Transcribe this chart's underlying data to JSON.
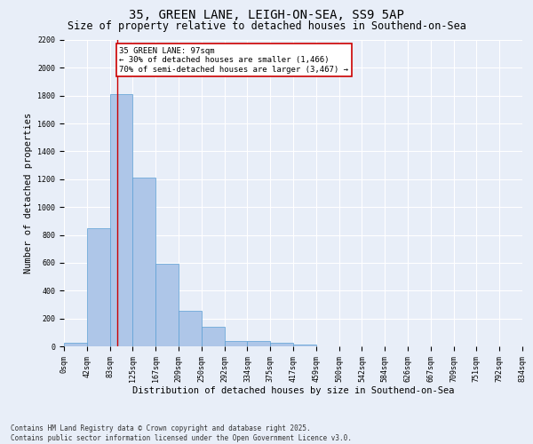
{
  "title": "35, GREEN LANE, LEIGH-ON-SEA, SS9 5AP",
  "subtitle": "Size of property relative to detached houses in Southend-on-Sea",
  "xlabel": "Distribution of detached houses by size in Southend-on-Sea",
  "ylabel": "Number of detached properties",
  "bin_labels": [
    "0sqm",
    "42sqm",
    "83sqm",
    "125sqm",
    "167sqm",
    "209sqm",
    "250sqm",
    "292sqm",
    "334sqm",
    "375sqm",
    "417sqm",
    "459sqm",
    "500sqm",
    "542sqm",
    "584sqm",
    "626sqm",
    "667sqm",
    "709sqm",
    "751sqm",
    "792sqm",
    "834sqm"
  ],
  "bar_values": [
    25,
    845,
    1810,
    1210,
    595,
    255,
    140,
    40,
    38,
    25,
    10,
    0,
    0,
    0,
    0,
    0,
    0,
    0,
    0,
    0
  ],
  "bar_color": "#aec6e8",
  "bar_edge_color": "#5a9fd4",
  "bg_color": "#e8eef8",
  "grid_color": "#ffffff",
  "red_line_x": 2.32,
  "annotation_text": "35 GREEN LANE: 97sqm\n← 30% of detached houses are smaller (1,466)\n70% of semi-detached houses are larger (3,467) →",
  "annotation_box_color": "#ffffff",
  "annotation_box_edge": "#cc0000",
  "ylim": [
    0,
    2200
  ],
  "yticks": [
    0,
    200,
    400,
    600,
    800,
    1000,
    1200,
    1400,
    1600,
    1800,
    2000,
    2200
  ],
  "footer": "Contains HM Land Registry data © Crown copyright and database right 2025.\nContains public sector information licensed under the Open Government Licence v3.0.",
  "title_fontsize": 10,
  "subtitle_fontsize": 8.5,
  "axis_label_fontsize": 7.5,
  "tick_fontsize": 6,
  "annotation_fontsize": 6.5,
  "footer_fontsize": 5.5
}
